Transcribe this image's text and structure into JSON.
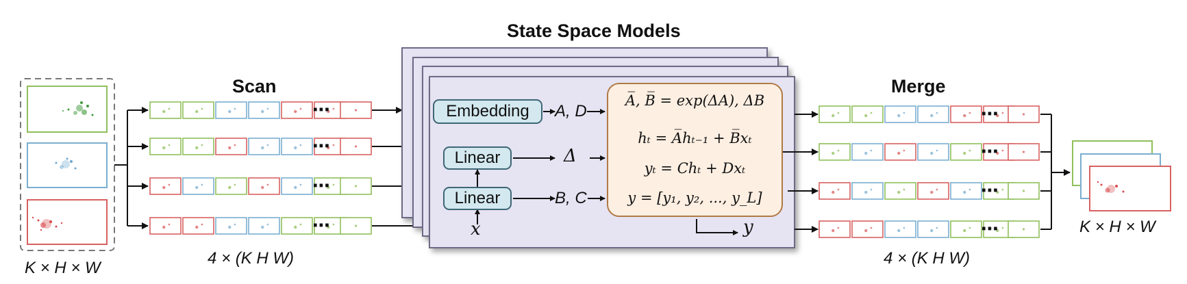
{
  "labels": {
    "ssm_title": "State Space Models",
    "scan_title": "Scan",
    "merge_title": "Merge",
    "input_dims": "K × H × W",
    "scan_dims": "4 × (K H W)",
    "merge_dims": "4 × (K H W)",
    "output_dims": "K × H × W"
  },
  "blocks": {
    "embedding": "Embedding",
    "linear_top": "Linear",
    "linear_bottom": "Linear"
  },
  "symbols": {
    "a_d": "A, D",
    "delta": "Δ",
    "b_c": "B, C",
    "x": "x",
    "y": "y",
    "ellipsis": "⋯"
  },
  "equations": {
    "discretize": "A̅, B̅ = exp(ΔA), ΔB",
    "state": "hₜ = A̅hₜ₋₁ + B̅xₜ",
    "output": "yₜ = Chₜ + Dxₜ",
    "sequence": "y = [y₁, y₂, ..., y_L]"
  },
  "colors": {
    "green": "#8fbf5a",
    "blue": "#79aed0",
    "red": "#d86060",
    "ssm_panel": "#e6e3f2",
    "ssm_border": "#6c6a86",
    "block_fill": "#d3e8ef",
    "block_border": "#3e6676",
    "eq_fill": "#fdefe2",
    "eq_border": "#b07a44"
  },
  "sequence_colors": {
    "scan": [
      [
        "green",
        "green",
        "blue",
        "blue",
        "red",
        "red"
      ],
      [
        "green",
        "green",
        "red",
        "blue",
        "blue",
        "red"
      ],
      [
        "red",
        "blue",
        "green",
        "red",
        "blue",
        "green"
      ],
      [
        "red",
        "red",
        "blue",
        "blue",
        "green",
        "green"
      ]
    ],
    "merge": [
      [
        "green",
        "green",
        "blue",
        "blue",
        "red",
        "red"
      ],
      [
        "green",
        "blue",
        "red",
        "blue",
        "green",
        "red"
      ],
      [
        "red",
        "blue",
        "green",
        "red",
        "blue",
        "green"
      ],
      [
        "red",
        "red",
        "blue",
        "blue",
        "green",
        "green"
      ]
    ]
  }
}
